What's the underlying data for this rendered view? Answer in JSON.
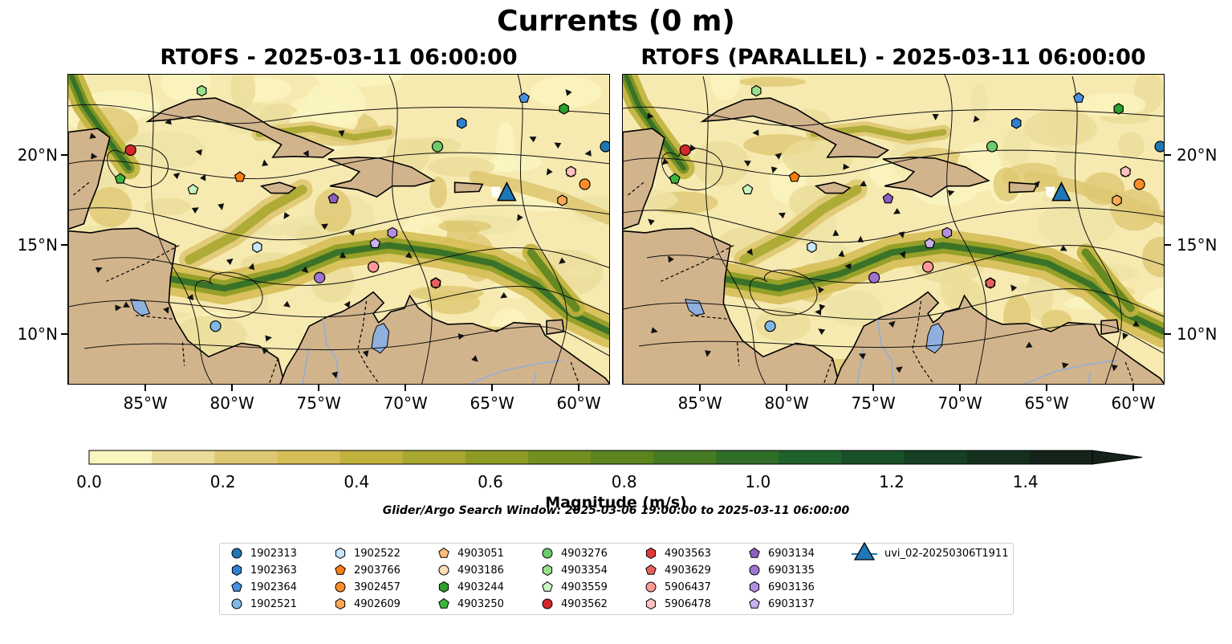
{
  "suptitle": "Currents (0 m)",
  "left_title": "RTOFS - 2025-03-11 06:00:00",
  "right_title": "RTOFS (PARALLEL) - 2025-03-11 06:00:00",
  "lon_ticks": [
    "85°W",
    "80°W",
    "75°W",
    "70°W",
    "65°W",
    "60°W"
  ],
  "lat_ticks": [
    "20°N",
    "15°N",
    "10°N"
  ],
  "colorbar": {
    "label": "Magnitude (m/s)",
    "ticks": [
      "0.0",
      "0.2",
      "0.4",
      "0.6",
      "0.8",
      "1.0",
      "1.2",
      "1.4"
    ],
    "colors": [
      "#fbf5c0",
      "#ebdc99",
      "#dfc873",
      "#d6be56",
      "#c1b23d",
      "#a9a830",
      "#8e9c24",
      "#73901f",
      "#5c851e",
      "#467a23",
      "#306e28",
      "#1e612b",
      "#185029",
      "#163f24",
      "#152f1d",
      "#14221a"
    ],
    "extend": "max"
  },
  "search_window": "Glider/Argo Search Window: 2025-03-06 19:00:00 to 2025-03-11 06:00:00",
  "colors": {
    "land": "#d2b48c",
    "lakes": "#8fb0de",
    "rivers": "#9cb0c8"
  },
  "legend": [
    {
      "label": "1902313",
      "marker": "circle",
      "color": "#1f77b4"
    },
    {
      "label": "1902363",
      "marker": "hexagon",
      "color": "#2f80d0"
    },
    {
      "label": "1902364",
      "marker": "pentagon",
      "color": "#4a90e2"
    },
    {
      "label": "1902521",
      "marker": "circle",
      "color": "#7fb8e8"
    },
    {
      "label": "1902522",
      "marker": "hexagon",
      "color": "#c6e7ff"
    },
    {
      "label": "2903766",
      "marker": "pentagon",
      "color": "#ff7f0e"
    },
    {
      "label": "3902457",
      "marker": "circle",
      "color": "#ff8c2a"
    },
    {
      "label": "4902609",
      "marker": "hexagon",
      "color": "#ffa857"
    },
    {
      "label": "4903051",
      "marker": "pentagon",
      "color": "#ffbb78"
    },
    {
      "label": "4903186",
      "marker": "circle",
      "color": "#ffdcb8"
    },
    {
      "label": "4903244",
      "marker": "hexagon",
      "color": "#2ca02c"
    },
    {
      "label": "4903250",
      "marker": "pentagon",
      "color": "#3cb43c"
    },
    {
      "label": "4903276",
      "marker": "circle",
      "color": "#6cc96c"
    },
    {
      "label": "4903354",
      "marker": "hexagon",
      "color": "#98df8a"
    },
    {
      "label": "4903559",
      "marker": "pentagon",
      "color": "#c8f5c0"
    },
    {
      "label": "4903562",
      "marker": "circle",
      "color": "#d62728"
    },
    {
      "label": "4903563",
      "marker": "hexagon",
      "color": "#e0393a"
    },
    {
      "label": "4903629",
      "marker": "pentagon",
      "color": "#e8615e"
    },
    {
      "label": "5906437",
      "marker": "circle",
      "color": "#ff9896"
    },
    {
      "label": "5906478",
      "marker": "hexagon",
      "color": "#ffc2bf"
    },
    {
      "label": "6903134",
      "marker": "pentagon",
      "color": "#8c5fbf"
    },
    {
      "label": "6903135",
      "marker": "circle",
      "color": "#9f74d0"
    },
    {
      "label": "6903136",
      "marker": "hexagon",
      "color": "#b38fe0"
    },
    {
      "label": "6903137",
      "marker": "pentagon",
      "color": "#cbb1f0"
    },
    {
      "label": "uvi_02-20250306T1911",
      "marker": "triangle",
      "color": "#1f77b4"
    }
  ],
  "map_data": {
    "lon_range": [
      -89.5,
      -58.2
    ],
    "lat_range": [
      7.2,
      24.5
    ],
    "floats": [
      {
        "id": "1902313",
        "lon": -58.5,
        "lat": 20.5
      },
      {
        "id": "1902363",
        "lon": -66.8,
        "lat": 21.8
      },
      {
        "id": "1902364",
        "lon": -63.2,
        "lat": 23.2
      },
      {
        "id": "1902521",
        "lon": -81.0,
        "lat": 10.5
      },
      {
        "id": "1902522",
        "lon": -78.6,
        "lat": 14.9
      },
      {
        "id": "2903766",
        "lon": -79.6,
        "lat": 18.8
      },
      {
        "id": "3902457",
        "lon": -59.7,
        "lat": 18.4
      },
      {
        "id": "4902609",
        "lon": -61.0,
        "lat": 17.5
      },
      {
        "id": "4903051",
        "lon": -60.5,
        "lat": 19.1
      },
      {
        "id": "4903186",
        "lon": -71.9,
        "lat": 13.8
      },
      {
        "id": "4903244",
        "lon": -60.9,
        "lat": 22.6
      },
      {
        "id": "4903250",
        "lon": -86.5,
        "lat": 18.7
      },
      {
        "id": "4903276",
        "lon": -68.2,
        "lat": 20.5
      },
      {
        "id": "4903354",
        "lon": -81.8,
        "lat": 23.6
      },
      {
        "id": "4903559",
        "lon": -82.3,
        "lat": 18.1
      },
      {
        "id": "4903562",
        "lon": -85.9,
        "lat": 20.3
      },
      {
        "id": "4903563",
        "lon": -68.3,
        "lat": 12.9
      },
      {
        "id": "4903629",
        "lon": -68.3,
        "lat": 12.9
      },
      {
        "id": "5906437",
        "lon": -71.9,
        "lat": 13.8
      },
      {
        "id": "5906478",
        "lon": -60.5,
        "lat": 19.1
      },
      {
        "id": "6903134",
        "lon": -74.2,
        "lat": 17.6
      },
      {
        "id": "6903135",
        "lon": -75.0,
        "lat": 13.2
      },
      {
        "id": "6903136",
        "lon": -70.8,
        "lat": 15.7
      },
      {
        "id": "6903137",
        "lon": -71.8,
        "lat": 15.1
      }
    ],
    "glider": {
      "id": "uvi_02-20250306T1911",
      "lon": -64.2,
      "lat": 17.9
    }
  }
}
